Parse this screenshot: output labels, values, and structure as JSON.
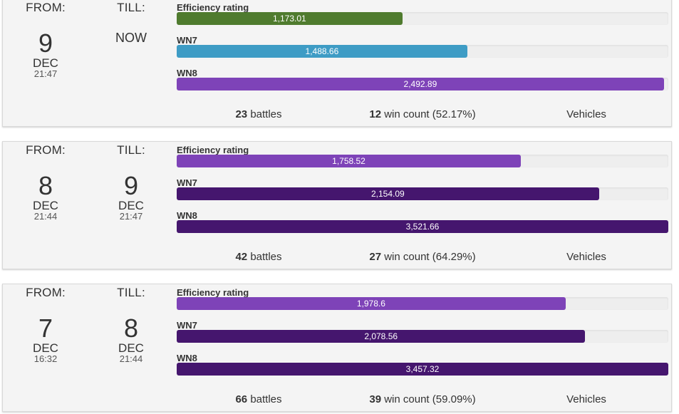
{
  "labels": {
    "from": "FROM:",
    "till": "TILL:",
    "efficiency": "Efficiency rating",
    "wn7": "WN7",
    "wn8": "WN8",
    "battles_suffix": "battles",
    "wins_suffix": "win count",
    "vehicles": "Vehicles"
  },
  "colors": {
    "green": "#4f7b2e",
    "blue": "#3e9cc5",
    "purple_light": "#7e43b8",
    "purple_dark": "#45166e",
    "track": "#eeeeee"
  },
  "periods": [
    {
      "from": {
        "day": "9",
        "month": "DEC",
        "time": "21:47"
      },
      "till": {
        "now": "NOW"
      },
      "efficiency": {
        "value": "1,173.01",
        "fill": 0.459,
        "color": "green"
      },
      "wn7": {
        "value": "1,488.66",
        "fill": 0.591,
        "color": "blue"
      },
      "wn8": {
        "value": "2,492.89",
        "fill": 0.991,
        "color": "purple_light"
      },
      "battles": "23",
      "wins": "12",
      "win_pct": "(52.17%)"
    },
    {
      "from": {
        "day": "8",
        "month": "DEC",
        "time": "21:44"
      },
      "till": {
        "day": "9",
        "month": "DEC",
        "time": "21:47"
      },
      "efficiency": {
        "value": "1,758.52",
        "fill": 0.7,
        "color": "purple_light"
      },
      "wn7": {
        "value": "2,154.09",
        "fill": 0.859,
        "color": "purple_dark"
      },
      "wn8": {
        "value": "3,521.66",
        "fill": 1.0,
        "color": "purple_dark"
      },
      "battles": "42",
      "wins": "27",
      "win_pct": "(64.29%)"
    },
    {
      "from": {
        "day": "7",
        "month": "DEC",
        "time": "16:32"
      },
      "till": {
        "day": "8",
        "month": "DEC",
        "time": "21:44"
      },
      "efficiency": {
        "value": "1,978.6",
        "fill": 0.791,
        "color": "purple_light"
      },
      "wn7": {
        "value": "2,078.56",
        "fill": 0.831,
        "color": "purple_dark"
      },
      "wn8": {
        "value": "3,457.32",
        "fill": 1.0,
        "color": "purple_dark"
      },
      "battles": "66",
      "wins": "39",
      "win_pct": "(59.09%)"
    }
  ]
}
